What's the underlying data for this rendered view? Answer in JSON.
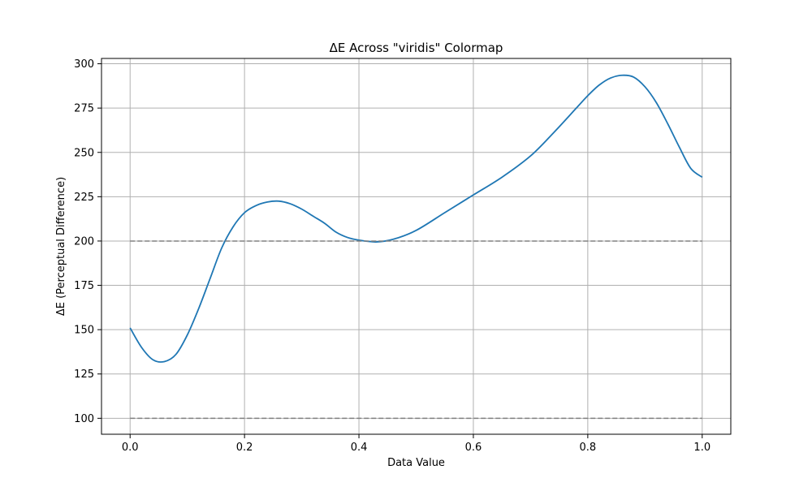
{
  "chart_data": {
    "type": "line",
    "title": "ΔE Across \"viridis\" Colormap",
    "xlabel": "Data Value",
    "ylabel": "ΔE (Perceptual Difference)",
    "xlim": [
      -0.05,
      1.05
    ],
    "ylim": [
      91,
      303
    ],
    "grid": true,
    "xticks": [
      0.0,
      0.2,
      0.4,
      0.6,
      0.8,
      1.0
    ],
    "xtick_labels": [
      "0.0",
      "0.2",
      "0.4",
      "0.6",
      "0.8",
      "1.0"
    ],
    "yticks": [
      100,
      125,
      150,
      175,
      200,
      225,
      250,
      275,
      300
    ],
    "ytick_labels": [
      "100",
      "125",
      "150",
      "175",
      "200",
      "225",
      "250",
      "275",
      "300"
    ],
    "series": [
      {
        "color": "#1f77b4",
        "style": "solid",
        "x": [
          0.0,
          0.02,
          0.04,
          0.06,
          0.08,
          0.1,
          0.12,
          0.14,
          0.16,
          0.18,
          0.2,
          0.22,
          0.24,
          0.26,
          0.28,
          0.3,
          0.32,
          0.34,
          0.36,
          0.38,
          0.4,
          0.43,
          0.46,
          0.5,
          0.55,
          0.6,
          0.65,
          0.7,
          0.74,
          0.78,
          0.8,
          0.82,
          0.84,
          0.86,
          0.88,
          0.9,
          0.92,
          0.94,
          0.96,
          0.98,
          1.0
        ],
        "y": [
          151,
          140,
          133,
          132,
          136,
          147,
          162,
          179,
          196,
          208,
          216,
          220,
          222,
          222.5,
          221,
          218,
          214,
          210,
          205,
          202,
          200.5,
          199.5,
          201,
          206,
          216,
          226,
          236,
          248,
          261,
          275,
          282,
          288,
          292,
          293.5,
          292.5,
          287,
          278,
          266,
          253,
          241,
          236
        ]
      },
      {
        "color": "#808080",
        "style": "dashed",
        "x": [
          0.0,
          1.0
        ],
        "y": [
          200,
          200
        ]
      },
      {
        "color": "#808080",
        "style": "dashed",
        "x": [
          0.0,
          1.0
        ],
        "y": [
          100,
          100
        ]
      }
    ]
  }
}
